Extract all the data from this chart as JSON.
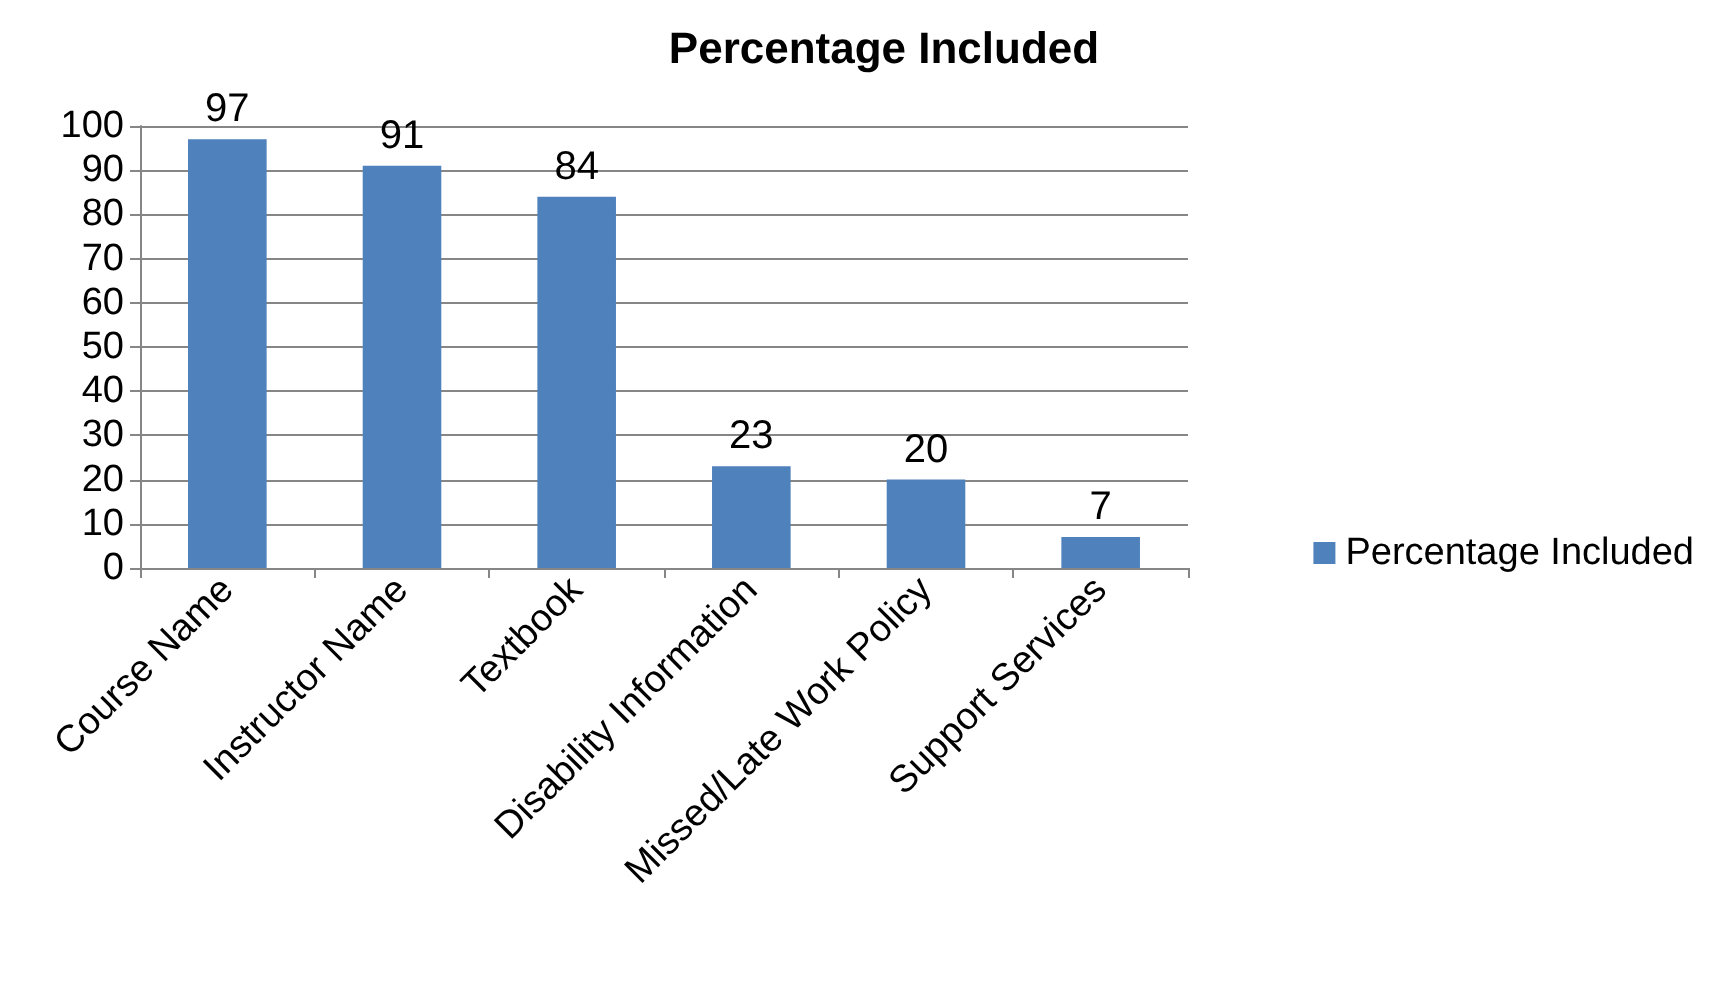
{
  "chart_data": {
    "type": "bar",
    "title": "Percentage Included",
    "categories": [
      "Course Name",
      "Instructor Name",
      "Textbook",
      "Disability Information",
      "Missed/Late Work Policy",
      "Support Services"
    ],
    "series": [
      {
        "name": "Percentage Included",
        "color": "#4f81bd",
        "values": [
          97,
          91,
          84,
          23,
          20,
          7
        ]
      }
    ],
    "ylim": [
      0,
      100
    ],
    "yticks": [
      0,
      10,
      20,
      30,
      40,
      50,
      60,
      70,
      80,
      90,
      100
    ],
    "grid": "y",
    "legend": "right",
    "data_labels": true
  }
}
